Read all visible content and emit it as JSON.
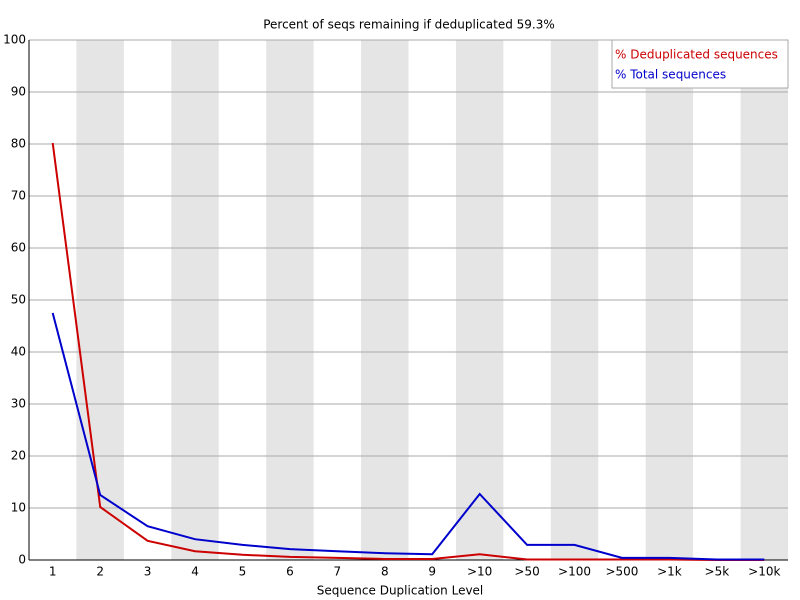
{
  "chart_data": {
    "type": "line",
    "title": "Percent of seqs remaining if deduplicated 59.3%",
    "x_label": "Sequence Duplication Level",
    "categories": [
      "1",
      "2",
      "3",
      "4",
      "5",
      "6",
      "7",
      "8",
      "9",
      ">10",
      ">50",
      ">100",
      ">500",
      ">1k",
      ">5k",
      ">10k"
    ],
    "series": [
      {
        "name": "% Deduplicated sequences",
        "color": "#cc0000",
        "values": [
          80.2,
          10.2,
          3.7,
          1.7,
          1.0,
          0.6,
          0.4,
          0.2,
          0.2,
          1.1,
          0.1,
          0.1,
          0.1,
          0.1,
          0,
          0
        ]
      },
      {
        "name": "% Total sequences",
        "color": "#0000cc",
        "values": [
          47.5,
          12.5,
          6.5,
          4.0,
          2.9,
          2.1,
          1.7,
          1.3,
          1.1,
          12.7,
          2.9,
          2.9,
          0.4,
          0.4,
          0.1,
          0.1
        ]
      }
    ],
    "ylim": [
      0,
      100
    ],
    "yticks": [
      0,
      10,
      20,
      30,
      40,
      50,
      60,
      70,
      80,
      90,
      100
    ],
    "grid": true,
    "legend": "top-right"
  }
}
